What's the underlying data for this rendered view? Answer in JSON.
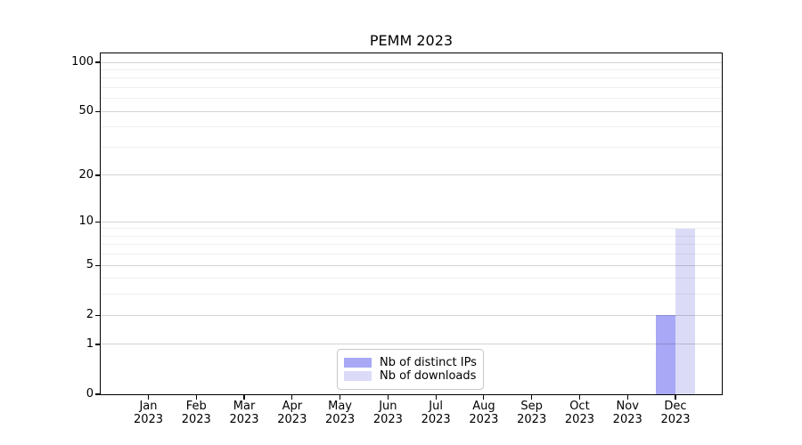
{
  "chart_data": {
    "type": "bar",
    "title": "PEMM 2023",
    "xlabel": "",
    "ylabel": "",
    "categories": [
      {
        "month": "Jan",
        "year": "2023"
      },
      {
        "month": "Feb",
        "year": "2023"
      },
      {
        "month": "Mar",
        "year": "2023"
      },
      {
        "month": "Apr",
        "year": "2023"
      },
      {
        "month": "May",
        "year": "2023"
      },
      {
        "month": "Jun",
        "year": "2023"
      },
      {
        "month": "Jul",
        "year": "2023"
      },
      {
        "month": "Aug",
        "year": "2023"
      },
      {
        "month": "Sep",
        "year": "2023"
      },
      {
        "month": "Oct",
        "year": "2023"
      },
      {
        "month": "Nov",
        "year": "2023"
      },
      {
        "month": "Dec",
        "year": "2023"
      }
    ],
    "series": [
      {
        "name": "Nb of distinct IPs",
        "color": "#a8a8f7",
        "values": [
          0,
          0,
          0,
          0,
          0,
          0,
          0,
          0,
          0,
          0,
          0,
          2
        ]
      },
      {
        "name": "Nb of downloads",
        "color": "#dbdbf8",
        "values": [
          0,
          0,
          0,
          0,
          0,
          0,
          0,
          0,
          0,
          0,
          0,
          9
        ]
      }
    ],
    "y_scale": "log1p",
    "y_major_ticks": [
      0,
      1,
      2,
      5,
      10,
      20,
      50,
      100
    ],
    "y_minor_ticks": [
      3,
      4,
      6,
      7,
      8,
      9,
      30,
      40,
      60,
      70,
      80,
      90
    ],
    "ylim": [
      0,
      113
    ],
    "grid": "horizontal",
    "legend": {
      "position": "lower center"
    }
  },
  "colors": {
    "background": "#ffffff",
    "axis": "#000000",
    "grid_major": "#d4d4d4",
    "grid_minor": "#efefef",
    "legend_border": "#c8c8c8",
    "bar_distinct_ips": "#a8a8f7",
    "bar_downloads": "#dbdbf8"
  }
}
